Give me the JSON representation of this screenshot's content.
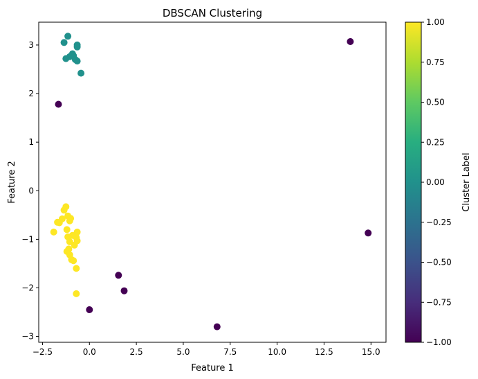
{
  "chart_data": {
    "type": "scatter",
    "title": "DBSCAN Clustering",
    "xlabel": "Feature 1",
    "ylabel": "Feature 2",
    "xlim": [
      -2.7,
      15.8
    ],
    "ylim": [
      -3.12,
      3.47
    ],
    "xticks": [
      -2.5,
      0.0,
      2.5,
      5.0,
      7.5,
      10.0,
      12.5,
      15.0
    ],
    "xtick_labels": [
      "−2.5",
      "0.0",
      "2.5",
      "5.0",
      "7.5",
      "10.0",
      "12.5",
      "15.0"
    ],
    "yticks": [
      -3,
      -2,
      -1,
      0,
      1,
      2,
      3
    ],
    "ytick_labels": [
      "−3",
      "−2",
      "−1",
      "0",
      "1",
      "2",
      "3"
    ],
    "grid": false,
    "colormap": "viridis",
    "colorbar": {
      "label": "Cluster Label",
      "range": [
        -1.0,
        1.0
      ],
      "ticks": [
        1.0,
        0.75,
        0.5,
        0.25,
        0.0,
        -0.25,
        -0.5,
        -0.75,
        -1.0
      ],
      "tick_labels": [
        "1.00",
        "0.75",
        "0.50",
        "0.25",
        "0.00",
        "−0.25",
        "−0.50",
        "−0.75",
        "−1.00"
      ]
    },
    "colors": {
      "-1": "#440154",
      "0": "#21918c",
      "1": "#fde725"
    },
    "points": [
      {
        "x": -1.15,
        "y": 3.18,
        "label": 0
      },
      {
        "x": -1.35,
        "y": 3.05,
        "label": 0
      },
      {
        "x": -0.65,
        "y": 3.0,
        "label": 0
      },
      {
        "x": -0.65,
        "y": 2.96,
        "label": 0
      },
      {
        "x": -0.9,
        "y": 2.82,
        "label": 0
      },
      {
        "x": -0.85,
        "y": 2.78,
        "label": 0
      },
      {
        "x": -1.05,
        "y": 2.76,
        "label": 0
      },
      {
        "x": -1.25,
        "y": 2.72,
        "label": 0
      },
      {
        "x": -0.75,
        "y": 2.7,
        "label": 0
      },
      {
        "x": -0.65,
        "y": 2.67,
        "label": 0
      },
      {
        "x": -0.45,
        "y": 2.42,
        "label": 0
      },
      {
        "x": -1.25,
        "y": -0.33,
        "label": 1
      },
      {
        "x": -1.35,
        "y": -0.4,
        "label": 1
      },
      {
        "x": -1.15,
        "y": -0.52,
        "label": 1
      },
      {
        "x": -1.45,
        "y": -0.58,
        "label": 1
      },
      {
        "x": -1.0,
        "y": -0.57,
        "label": 1
      },
      {
        "x": -1.05,
        "y": -0.62,
        "label": 1
      },
      {
        "x": -1.6,
        "y": -0.66,
        "label": 1
      },
      {
        "x": -1.7,
        "y": -0.65,
        "label": 1
      },
      {
        "x": -1.2,
        "y": -0.8,
        "label": 1
      },
      {
        "x": -1.9,
        "y": -0.85,
        "label": 1
      },
      {
        "x": -0.65,
        "y": -0.85,
        "label": 1
      },
      {
        "x": -0.9,
        "y": -0.92,
        "label": 1
      },
      {
        "x": -1.15,
        "y": -0.95,
        "label": 1
      },
      {
        "x": -0.7,
        "y": -0.96,
        "label": 1
      },
      {
        "x": -0.65,
        "y": -1.03,
        "label": 1
      },
      {
        "x": -1.05,
        "y": -1.05,
        "label": 1
      },
      {
        "x": -0.8,
        "y": -1.12,
        "label": 1
      },
      {
        "x": -1.1,
        "y": -1.2,
        "label": 1
      },
      {
        "x": -1.2,
        "y": -1.25,
        "label": 1
      },
      {
        "x": -1.05,
        "y": -1.32,
        "label": 1
      },
      {
        "x": -0.95,
        "y": -1.42,
        "label": 1
      },
      {
        "x": -0.85,
        "y": -1.44,
        "label": 1
      },
      {
        "x": -0.7,
        "y": -1.6,
        "label": 1
      },
      {
        "x": -0.7,
        "y": -2.12,
        "label": 1
      },
      {
        "x": -1.65,
        "y": 1.78,
        "label": -1
      },
      {
        "x": 13.9,
        "y": 3.07,
        "label": -1
      },
      {
        "x": 14.85,
        "y": -0.87,
        "label": -1
      },
      {
        "x": 1.55,
        "y": -1.74,
        "label": -1
      },
      {
        "x": 1.85,
        "y": -2.06,
        "label": -1
      },
      {
        "x": 0.0,
        "y": -2.45,
        "label": -1
      },
      {
        "x": 6.8,
        "y": -2.8,
        "label": -1
      }
    ]
  }
}
